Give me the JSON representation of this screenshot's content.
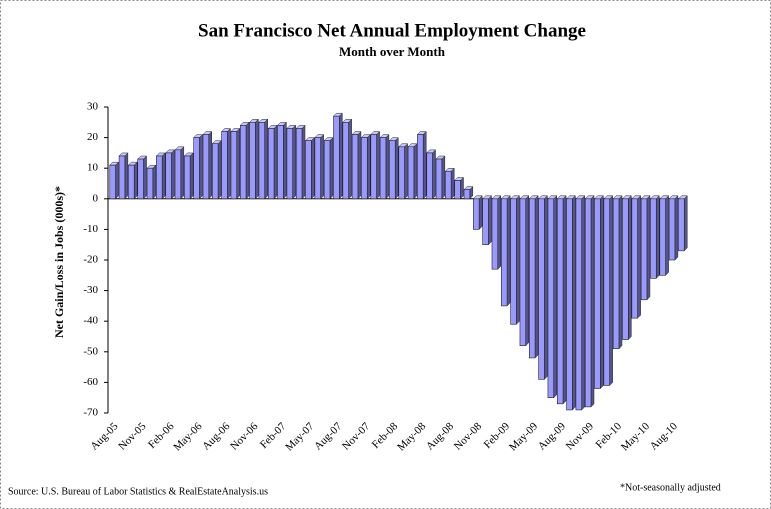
{
  "chart_data": {
    "type": "bar",
    "title": "San Francisco Net Annual Employment Change",
    "subtitle": "Month over Month",
    "y_label": "Net Gain/Loss in Jobs (000s)*",
    "source": "Source: U.S. Bureau of Labor Statistics & RealEstateAnalysis.us",
    "note": "*Not-seasonally adjusted",
    "color": "#9999ff",
    "categories": [
      "Aug-05",
      null,
      null,
      "Nov-05",
      null,
      null,
      "Feb-06",
      null,
      null,
      "May-06",
      null,
      null,
      "Aug-06",
      null,
      null,
      "Nov-06",
      null,
      null,
      "Feb-07",
      null,
      null,
      "May-07",
      null,
      null,
      "Aug-07",
      null,
      null,
      "Nov-07",
      null,
      null,
      "Feb-08",
      null,
      null,
      "May-08",
      null,
      null,
      "Aug-08",
      null,
      null,
      "Nov-08",
      null,
      null,
      "Feb-09",
      null,
      null,
      "May-09",
      null,
      null,
      "Aug-09",
      null,
      null,
      "Nov-09",
      null,
      null,
      "Feb-10",
      null,
      null,
      "May-10",
      null,
      null,
      "Aug-10",
      null
    ],
    "values": [
      11,
      14,
      11,
      13,
      10,
      14,
      15,
      16,
      14,
      20,
      21,
      18,
      22,
      22,
      24,
      25,
      25,
      23,
      24,
      23,
      23,
      19,
      20,
      19,
      27,
      25,
      21,
      20,
      21,
      20,
      19,
      17,
      17,
      21,
      15,
      13,
      9,
      6,
      3,
      -10,
      -15,
      -23,
      -35,
      -41,
      -48,
      -52,
      -59,
      -65,
      -67,
      -69,
      -69,
      -68,
      -62,
      -61,
      -49,
      -46,
      -39,
      -33,
      -26,
      -25,
      -20,
      -17
    ],
    "ylim": [
      -70,
      30
    ],
    "yticks": [
      -70,
      -60,
      -50,
      -40,
      -30,
      -20,
      -10,
      0,
      10,
      20,
      30
    ]
  }
}
